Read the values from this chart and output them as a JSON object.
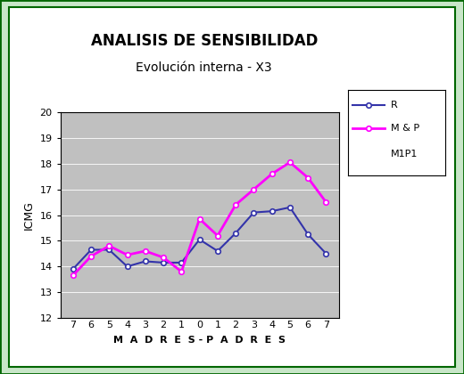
{
  "title_line1": "ANALISIS DE SENSIBILIDAD",
  "title_line2": "Evolución interna - X3",
  "xlabel": "M  A  D  R  E  S - P  A  D  R  E  S",
  "ylabel": "ICMG",
  "x_labels": [
    "7",
    "6",
    "5",
    "4",
    "3",
    "2",
    "1",
    "0",
    "1",
    "2",
    "3",
    "4",
    "5",
    "6",
    "7"
  ],
  "R_values": [
    13.9,
    14.65,
    14.65,
    14.0,
    14.2,
    14.15,
    14.15,
    15.05,
    14.6,
    15.3,
    16.1,
    16.15,
    16.3,
    15.25,
    14.5
  ],
  "MP_values": [
    13.65,
    14.4,
    14.8,
    14.45,
    14.6,
    14.35,
    13.8,
    15.85,
    15.2,
    16.4,
    17.0,
    17.6,
    18.05,
    17.45,
    16.5
  ],
  "R_color": "#3333aa",
  "MP_color": "#ff00ff",
  "legend_labels": [
    "R",
    "M & P",
    "M1P1"
  ],
  "ylim": [
    12,
    20
  ],
  "yticks": [
    12,
    13,
    14,
    15,
    16,
    17,
    18,
    19,
    20
  ],
  "plot_bg": "#c0c0c0",
  "outer_bg": "#ffffff",
  "border_color": "#c8e6c8",
  "border_edge": "#006600",
  "title_fontsize": 12,
  "subtitle_fontsize": 10
}
